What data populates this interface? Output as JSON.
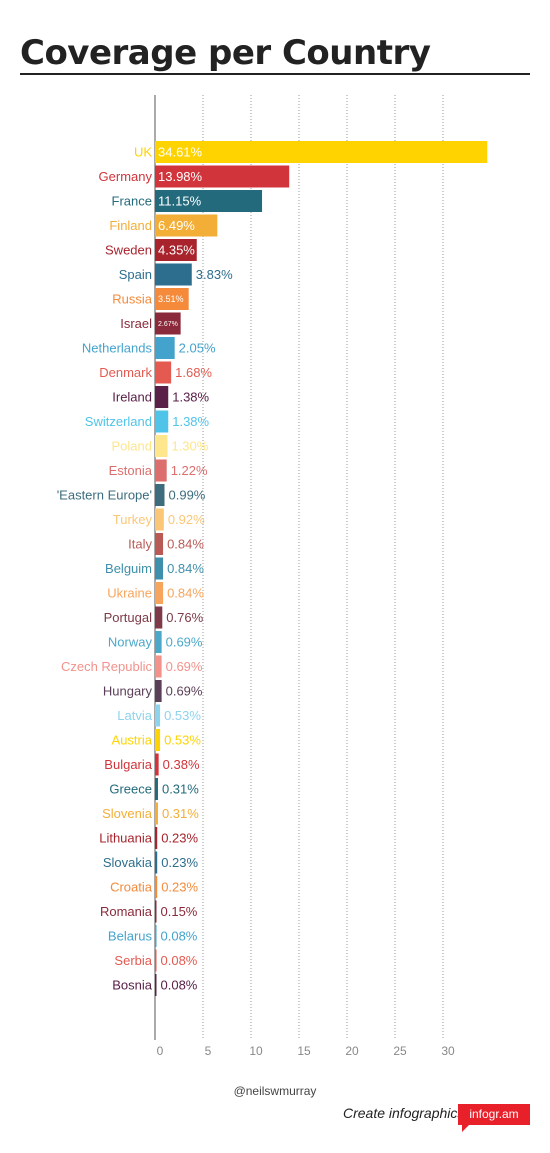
{
  "page": {
    "title": "Coverage per Country",
    "credit": "@neilswmurray",
    "cta": "Create infographics",
    "logo_text": "infogr.am"
  },
  "chart_data": {
    "type": "bar",
    "orientation": "horizontal",
    "title": "Coverage per Country",
    "xlabel": "",
    "ylabel": "",
    "xlim": [
      0,
      35
    ],
    "x_ticks": [
      0,
      5,
      10,
      15,
      20,
      25,
      30
    ],
    "grid": "vertical dotted",
    "value_suffix": "%",
    "categories": [
      "UK",
      "Germany",
      "France",
      "Finland",
      "Sweden",
      "Spain",
      "Russia",
      "Israel",
      "Netherlands",
      "Denmark",
      "Ireland",
      "Switzerland",
      "Poland",
      "Estonia",
      "'Eastern Europe'",
      "Turkey",
      "Italy",
      "Belguim",
      "Ukraine",
      "Portugal",
      "Norway",
      "Czech Republic",
      "Hungary",
      "Latvia",
      "Austria",
      "Bulgaria",
      "Greece",
      "Slovenia",
      "Lithuania",
      "Slovakia",
      "Croatia",
      "Romania",
      "Belarus",
      "Serbia",
      "Bosnia"
    ],
    "values": [
      34.61,
      13.98,
      11.15,
      6.49,
      4.35,
      3.83,
      3.51,
      2.67,
      2.05,
      1.68,
      1.38,
      1.38,
      1.3,
      1.22,
      0.99,
      0.92,
      0.84,
      0.84,
      0.84,
      0.76,
      0.69,
      0.69,
      0.69,
      0.53,
      0.53,
      0.38,
      0.31,
      0.31,
      0.23,
      0.23,
      0.23,
      0.15,
      0.08,
      0.08,
      0.08
    ],
    "labels": [
      "34.61%",
      "13.98%",
      "11.15%",
      "6.49%",
      "4.35%",
      "3.83%",
      "3.51%",
      "2.67%",
      "2.05%",
      "1.68%",
      "1.38%",
      "1.38%",
      "1.30%",
      "1.22%",
      "0.99%",
      "0.92%",
      "0.84%",
      "0.84%",
      "0.84%",
      "0.76%",
      "0.69%",
      "0.69%",
      "0.69%",
      "0.53%",
      "0.53%",
      "0.38%",
      "0.31%",
      "0.31%",
      "0.23%",
      "0.23%",
      "0.23%",
      "0.15%",
      "0.08%",
      "0.08%",
      "0.08%"
    ],
    "colors": [
      "#ffd300",
      "#d1343a",
      "#236a7c",
      "#f3ae37",
      "#a8232c",
      "#2d6e8f",
      "#f58a3b",
      "#8a2a3a",
      "#44a3cd",
      "#e45a50",
      "#5a2048",
      "#4fc4e8",
      "#fde68c",
      "#dc6e6d",
      "#3c6c7d",
      "#fbc777",
      "#b95a56",
      "#3e8fab",
      "#f7a55c",
      "#7e3a48",
      "#4ba8c9",
      "#f3928b",
      "#5b3f58",
      "#8ed3ec",
      "#ffd300",
      "#d1343a",
      "#236a7c",
      "#f3ae37",
      "#a8232c",
      "#2d6e8f",
      "#f58a3b",
      "#8a2a3a",
      "#44a3cd",
      "#e45a50",
      "#5a2048"
    ]
  }
}
